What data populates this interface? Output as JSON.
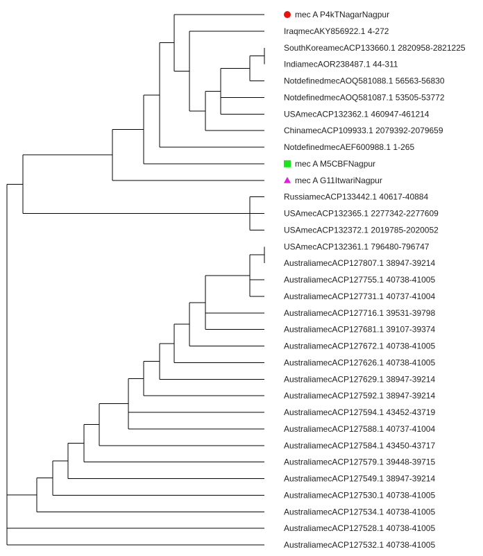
{
  "tree": {
    "taxa": [
      {
        "id": "t1",
        "label": "mec A P4kTNagarNagpur",
        "marker": "circle",
        "marker_color": "#e8130f"
      },
      {
        "id": "t2",
        "label": "IraqmecAKY856922.1 4-272"
      },
      {
        "id": "t3",
        "label": "SouthKoreamecACP133660.1 2820958-2821225"
      },
      {
        "id": "t4",
        "label": "IndiamecAOR238487.1 44-311"
      },
      {
        "id": "t5",
        "label": "NotdefinedmecAOQ581088.1 56563-56830"
      },
      {
        "id": "t6",
        "label": "NotdefinedmecAOQ581087.1 53505-53772"
      },
      {
        "id": "t7",
        "label": "USAmecACP132362.1 460947-461214"
      },
      {
        "id": "t8",
        "label": "ChinamecACP109933.1 2079392-2079659"
      },
      {
        "id": "t9",
        "label": "NotdefinedmecAEF600988.1 1-265"
      },
      {
        "id": "t10",
        "label": "mec A M5CBFNagpur",
        "marker": "square",
        "marker_color": "#19e619"
      },
      {
        "id": "t11",
        "label": "mec A G11ItwariNagpur",
        "marker": "triangle",
        "marker_color": "#e619e6"
      },
      {
        "id": "t12",
        "label": "RussiamecACP133442.1 40617-40884"
      },
      {
        "id": "t13",
        "label": "USAmecACP132365.1 2277342-2277609"
      },
      {
        "id": "t14",
        "label": "USAmecACP132372.1 2019785-2020052"
      },
      {
        "id": "t15",
        "label": "USAmecACP132361.1 796480-796747"
      },
      {
        "id": "t16",
        "label": "AustraliamecACP127807.1 38947-39214"
      },
      {
        "id": "t17",
        "label": "AustraliamecACP127755.1 40738-41005"
      },
      {
        "id": "t18",
        "label": "AustraliamecACP127731.1 40737-41004"
      },
      {
        "id": "t19",
        "label": "AustraliamecACP127716.1 39531-39798"
      },
      {
        "id": "t20",
        "label": "AustraliamecACP127681.1 39107-39374"
      },
      {
        "id": "t21",
        "label": "AustraliamecACP127672.1 40738-41005"
      },
      {
        "id": "t22",
        "label": "AustraliamecACP127626.1 40738-41005"
      },
      {
        "id": "t23",
        "label": "AustraliamecACP127629.1 38947-39214"
      },
      {
        "id": "t24",
        "label": "AustraliamecACP127592.1 38947-39214"
      },
      {
        "id": "t25",
        "label": "AustraliamecACP127594.1 43452-43719"
      },
      {
        "id": "t26",
        "label": "AustraliamecACP127588.1 40737-41004"
      },
      {
        "id": "t27",
        "label": "AustraliamecACP127584.1 43450-43717"
      },
      {
        "id": "t28",
        "label": "AustraliamecACP127579.1 39448-39715"
      },
      {
        "id": "t29",
        "label": "AustraliamecACP127549.1 38947-39214"
      },
      {
        "id": "t30",
        "label": "AustraliamecACP127530.1 40738-41005"
      },
      {
        "id": "t31",
        "label": "AustraliamecACP127534.1 40738-41005"
      },
      {
        "id": "t32",
        "label": "AustraliamecACP127528.1 40738-41005"
      },
      {
        "id": "t33",
        "label": "AustraliamecACP127532.1 40738-41005"
      }
    ],
    "topology": [
      "root",
      [
        "n_main",
        [
          "n_upper",
          [
            "n_a",
            [
              "n_b",
              [
                "n_c",
                "t1",
                [
                  "n_d",
                  "t2",
                  [
                    "n_e",
                    [
                      "n_f",
                      [
                        "n_g",
                        [
                          "n_h",
                          "t3",
                          "t4"
                        ],
                        "t5"
                      ],
                      "t6",
                      "t7"
                    ],
                    "t8"
                  ]
                ]
              ],
              "t9"
            ],
            "t10"
          ],
          "t11"
        ],
        [
          "n_i",
          "t12",
          "t13",
          "t14"
        ]
      ],
      [
        "n_j",
        [
          "n_k",
          [
            "n_l",
            [
              "n_m",
              [
                "n_n",
                [
                  "n_o",
                  [
                    "n_p",
                    [
                      "n_q",
                      [
                        "n_r",
                        [
                          "n_s",
                          [
                            "n_t",
                            [
                              "n_u",
                              [
                                "n_v",
                                "t15",
                                "t16"
                              ],
                              "t17",
                              "t18"
                            ],
                            "t19",
                            "t20"
                          ],
                          "t21"
                        ],
                        "t22"
                      ],
                      "t23"
                    ],
                    "t24"
                  ],
                  "t25",
                  "t26"
                ],
                "t27"
              ],
              "t28"
            ],
            "t29"
          ],
          "t30"
        ],
        "t31"
      ],
      "t32",
      "t33"
    ]
  }
}
